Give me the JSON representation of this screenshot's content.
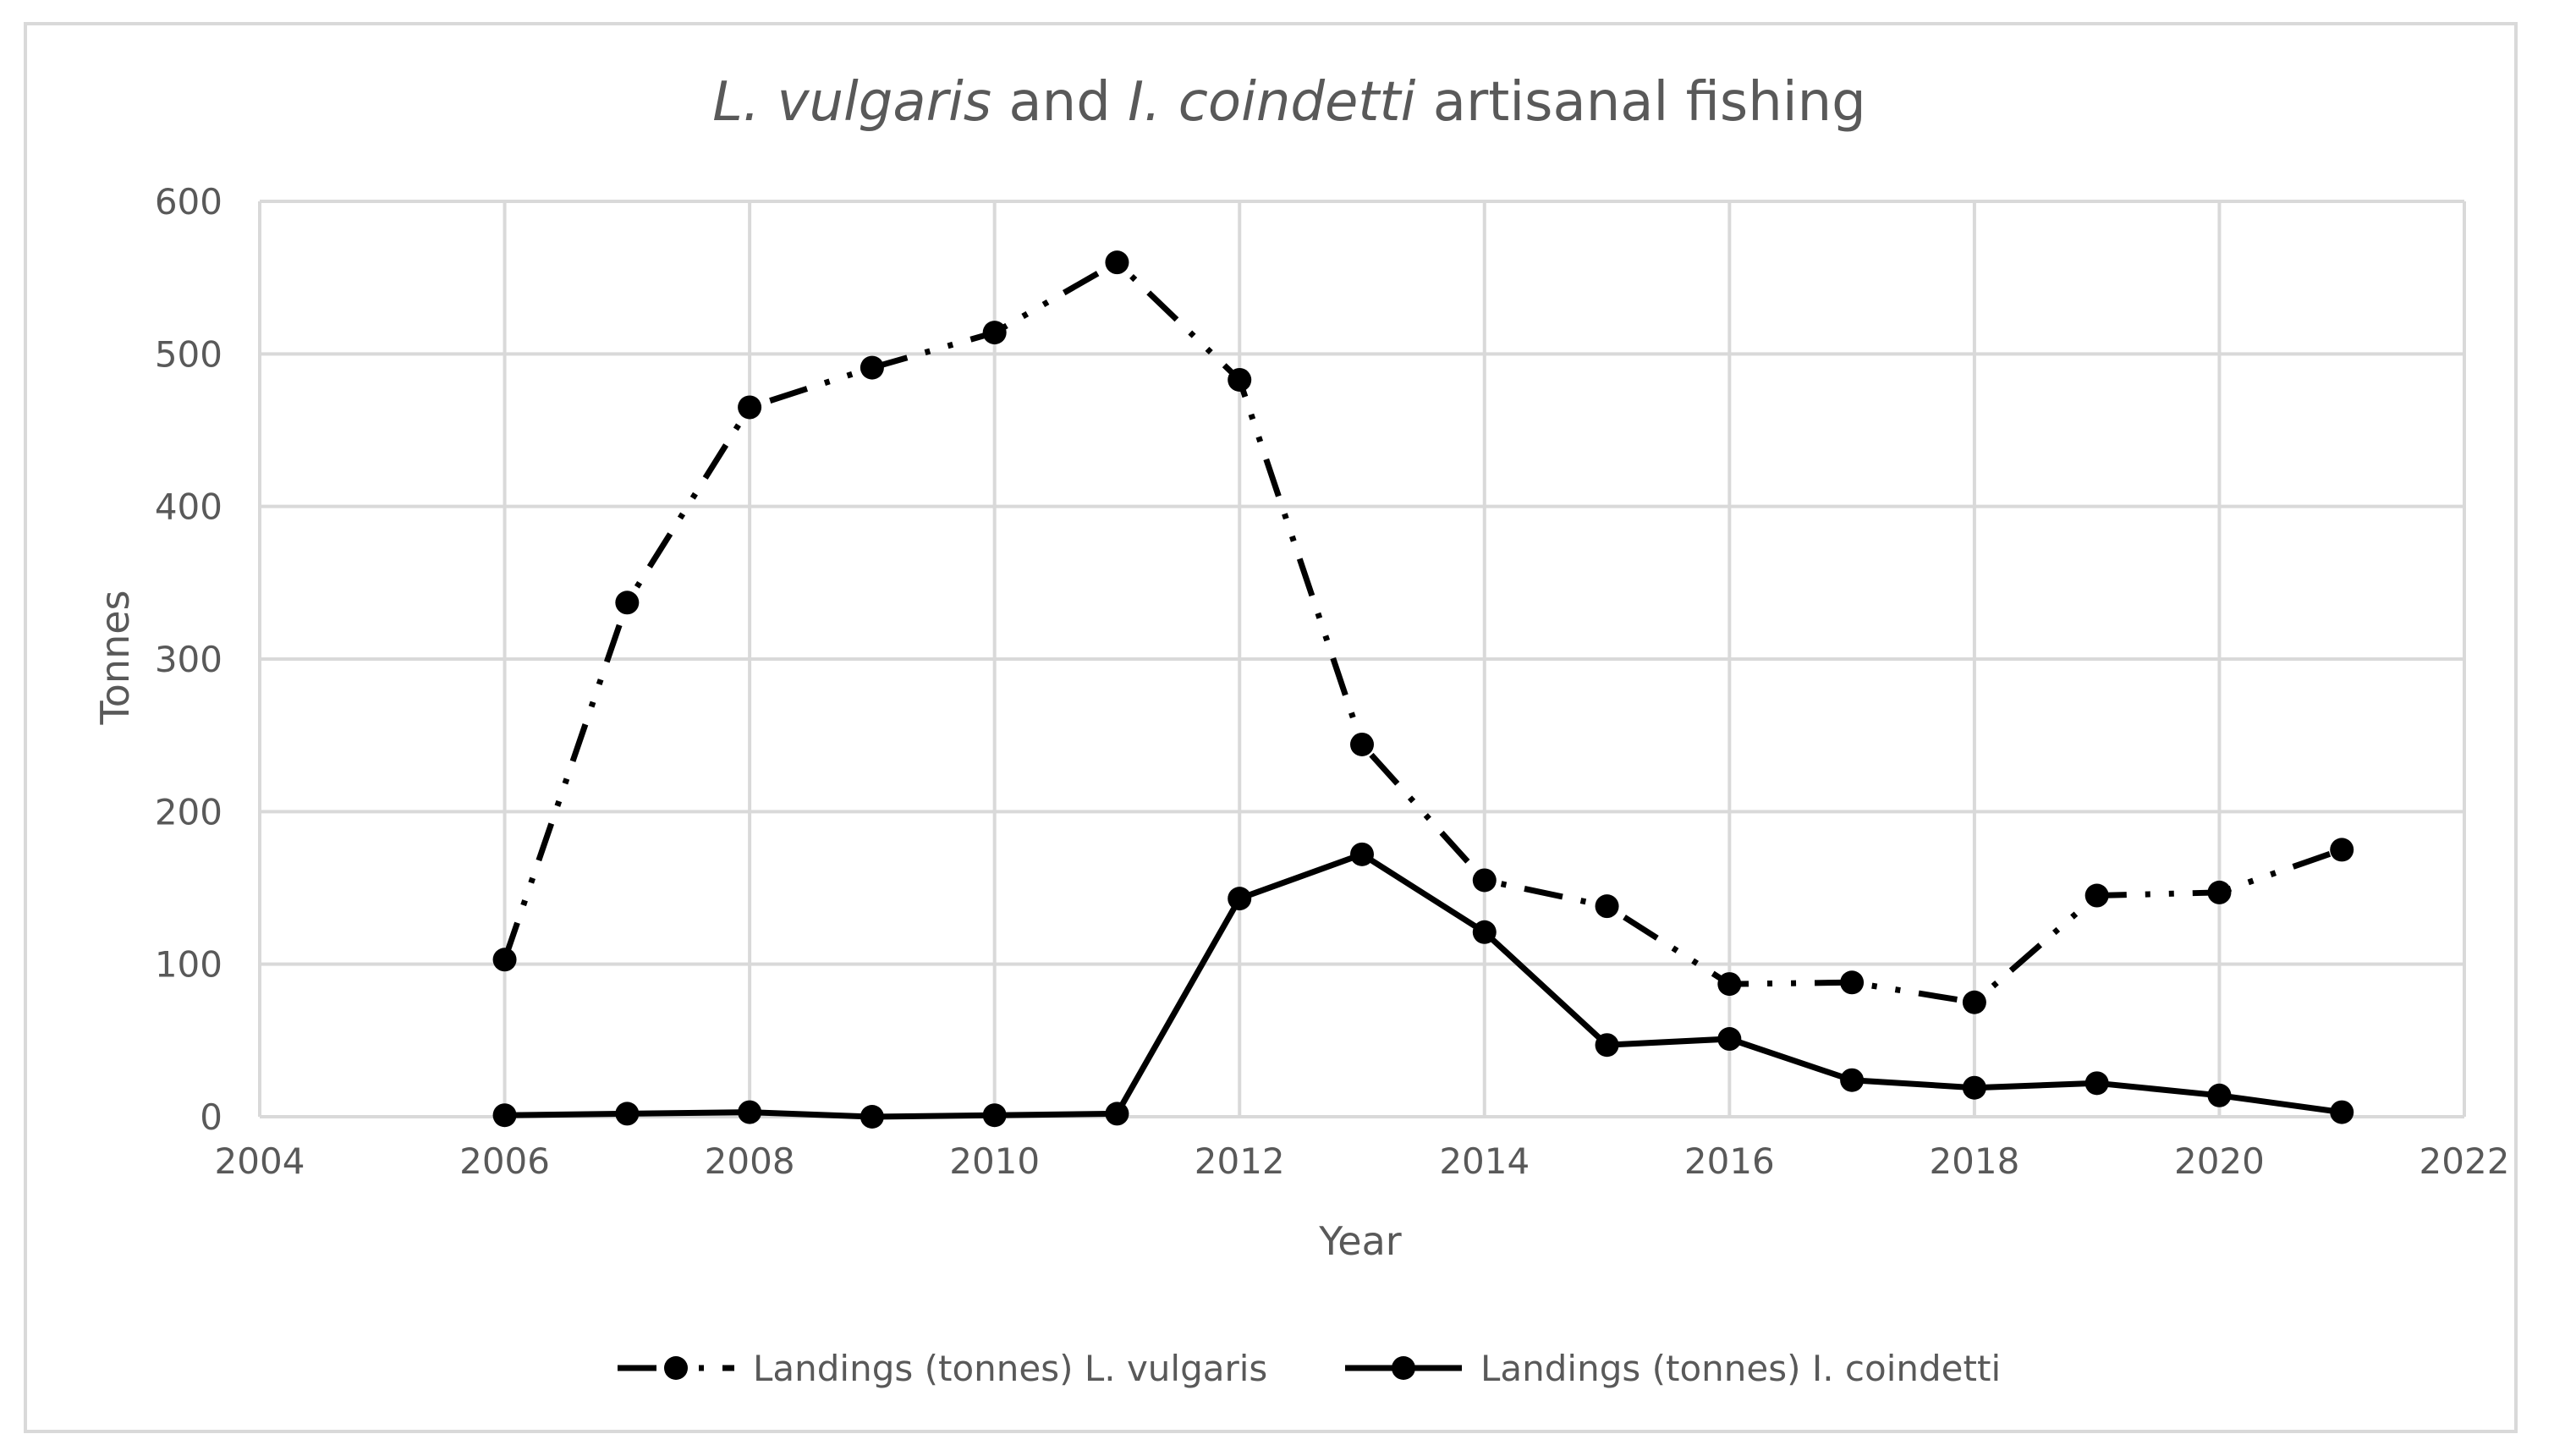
{
  "chart_data": {
    "type": "line",
    "title": {
      "species1": "L. vulgaris",
      "connector": " and ",
      "species2": "I. coindetti",
      "suffix": " artisanal fishing"
    },
    "xlabel": "Year",
    "ylabel": "Tonnes",
    "xlim": [
      2004,
      2022
    ],
    "ylim": [
      0,
      600
    ],
    "xticks": [
      2004,
      2006,
      2008,
      2010,
      2012,
      2014,
      2016,
      2018,
      2020,
      2022
    ],
    "yticks": [
      0,
      100,
      200,
      300,
      400,
      500,
      600
    ],
    "grid": true,
    "legend_position": "bottom",
    "series": [
      {
        "name": "Landings (tonnes) L. vulgaris",
        "line_style": "dash-dot-dot",
        "color": "#000000",
        "x": [
          2006,
          2007,
          2008,
          2009,
          2010,
          2011,
          2012,
          2013,
          2014,
          2015,
          2016,
          2017,
          2018,
          2019,
          2020,
          2021
        ],
        "y": [
          103,
          337,
          465,
          491,
          514,
          560,
          483,
          244,
          155,
          138,
          87,
          88,
          75,
          145,
          147,
          175
        ]
      },
      {
        "name": "Landings (tonnes) I. coindetti",
        "line_style": "solid",
        "color": "#000000",
        "x": [
          2006,
          2007,
          2008,
          2009,
          2010,
          2011,
          2012,
          2013,
          2014,
          2015,
          2016,
          2017,
          2018,
          2019,
          2020,
          2021
        ],
        "y": [
          1,
          2,
          3,
          0,
          1,
          2,
          143,
          172,
          121,
          47,
          51,
          24,
          19,
          22,
          14,
          3
        ]
      }
    ]
  }
}
